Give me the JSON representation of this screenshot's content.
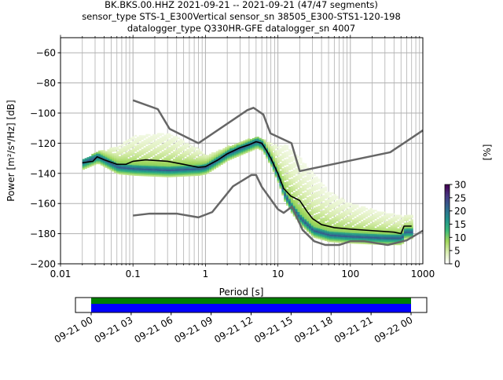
{
  "chart_data": {
    "type": "heatmap",
    "title_lines": [
      "BK.BKS.00.HHZ   2021-09-21 -- 2021-09-21  (47/47 segments)",
      "sensor_type STS-1_E300Vertical sensor_sn 38505_E300-STS1-120-198",
      "datalogger_type Q330HR-GFE datalogger_sn 4007"
    ],
    "xlabel": "Period [s]",
    "ylabel": "Power [m²/s⁴/Hz] [dB]",
    "xscale": "log",
    "xlim": [
      0.01,
      1000
    ],
    "ylim": [
      -200,
      -50
    ],
    "xticks": [
      {
        "v": 0.01,
        "label": "0.01"
      },
      {
        "v": 0.1,
        "label": "0.1"
      },
      {
        "v": 1,
        "label": "1"
      },
      {
        "v": 10,
        "label": "10"
      },
      {
        "v": 100,
        "label": "100"
      },
      {
        "v": 1000,
        "label": "1000"
      }
    ],
    "yticks": [
      -60,
      -80,
      -100,
      -120,
      -140,
      -160,
      -180,
      -200
    ],
    "grid": true,
    "colorbar": {
      "label": "[%]",
      "ticks": [
        0,
        5,
        10,
        15,
        20,
        25,
        30
      ],
      "range": [
        0,
        30
      ],
      "colors": [
        "#ffffff",
        "#d9edb0",
        "#9fd65a",
        "#35b779",
        "#21908d",
        "#31688e",
        "#443983",
        "#440154"
      ]
    },
    "nhnm": {
      "name": "High noise model",
      "periods": [
        0.1,
        0.22,
        0.32,
        0.8,
        3.8,
        4.6,
        6.3,
        7.9,
        15.4,
        20,
        354.8,
        1000
      ],
      "db": [
        -91.5,
        -97.4,
        -110.5,
        -120,
        -98,
        -96.5,
        -101,
        -113.5,
        -120,
        -138.5,
        -126,
        -111.5
      ]
    },
    "nlnm": {
      "name": "Low noise model",
      "periods": [
        0.1,
        0.17,
        0.4,
        0.8,
        1.24,
        2.4,
        4.3,
        5,
        6,
        10,
        12,
        15.6,
        21.9,
        31.6,
        45,
        70,
        101,
        154,
        328,
        600,
        1000
      ],
      "db": [
        -168,
        -166.7,
        -166.7,
        -169.2,
        -165.7,
        -148.6,
        -141.1,
        -141.1,
        -149,
        -163.8,
        -166.2,
        -162.1,
        -177.5,
        -185,
        -187.5,
        -187.5,
        -185,
        -185,
        -187.5,
        -184.4,
        -178
      ]
    },
    "mean": {
      "name": "Mean",
      "periods": [
        0.02,
        0.028,
        0.032,
        0.04,
        0.06,
        0.08,
        0.1,
        0.15,
        0.3,
        0.5,
        0.8,
        1,
        1.5,
        2,
        3,
        4,
        5,
        6,
        7,
        8,
        10,
        12,
        15,
        20,
        25,
        30,
        40,
        60,
        100,
        200,
        400,
        500,
        550,
        700
      ],
      "db": [
        -133,
        -132,
        -129,
        -131,
        -134,
        -134,
        -132,
        -131,
        -132,
        -134,
        -136,
        -135.5,
        -131,
        -127,
        -123,
        -121,
        -119,
        -120,
        -125,
        -130,
        -140,
        -150,
        -155,
        -158,
        -165,
        -170,
        -174,
        -176,
        -177,
        -178,
        -179,
        -180,
        -175,
        -175
      ]
    },
    "histogram": {
      "mode_periods": [
        0.02,
        0.032,
        0.06,
        0.1,
        0.3,
        0.8,
        1,
        2,
        4,
        5,
        6,
        8,
        10,
        12,
        15,
        20,
        30,
        50,
        100,
        300,
        500,
        550,
        700
      ],
      "mode_db": [
        -133,
        -129,
        -136,
        -137,
        -138,
        -137,
        -136,
        -127,
        -121,
        -119,
        -121,
        -132,
        -143,
        -154,
        -162,
        -170,
        -178,
        -181,
        -182,
        -183,
        -183,
        -179,
        -179
      ],
      "upper_db": [
        -131,
        -125,
        -122,
        -115,
        -113,
        -124,
        -128,
        -122,
        -117,
        -116,
        -117,
        -120,
        -122,
        -120,
        -124,
        -130,
        -140,
        -152,
        -160,
        -166,
        -168,
        -168,
        -168
      ]
    }
  },
  "timeline": {
    "tick_labels": [
      "09-21 00",
      "09-21 03",
      "09-21 06",
      "09-21 09",
      "09-21 12",
      "09-21 15",
      "09-21 18",
      "09-21 21",
      "09-22 00"
    ],
    "coverage_fraction": [
      0,
      1
    ],
    "colors": {
      "data": "#008000",
      "processed": "#0000ff"
    }
  }
}
